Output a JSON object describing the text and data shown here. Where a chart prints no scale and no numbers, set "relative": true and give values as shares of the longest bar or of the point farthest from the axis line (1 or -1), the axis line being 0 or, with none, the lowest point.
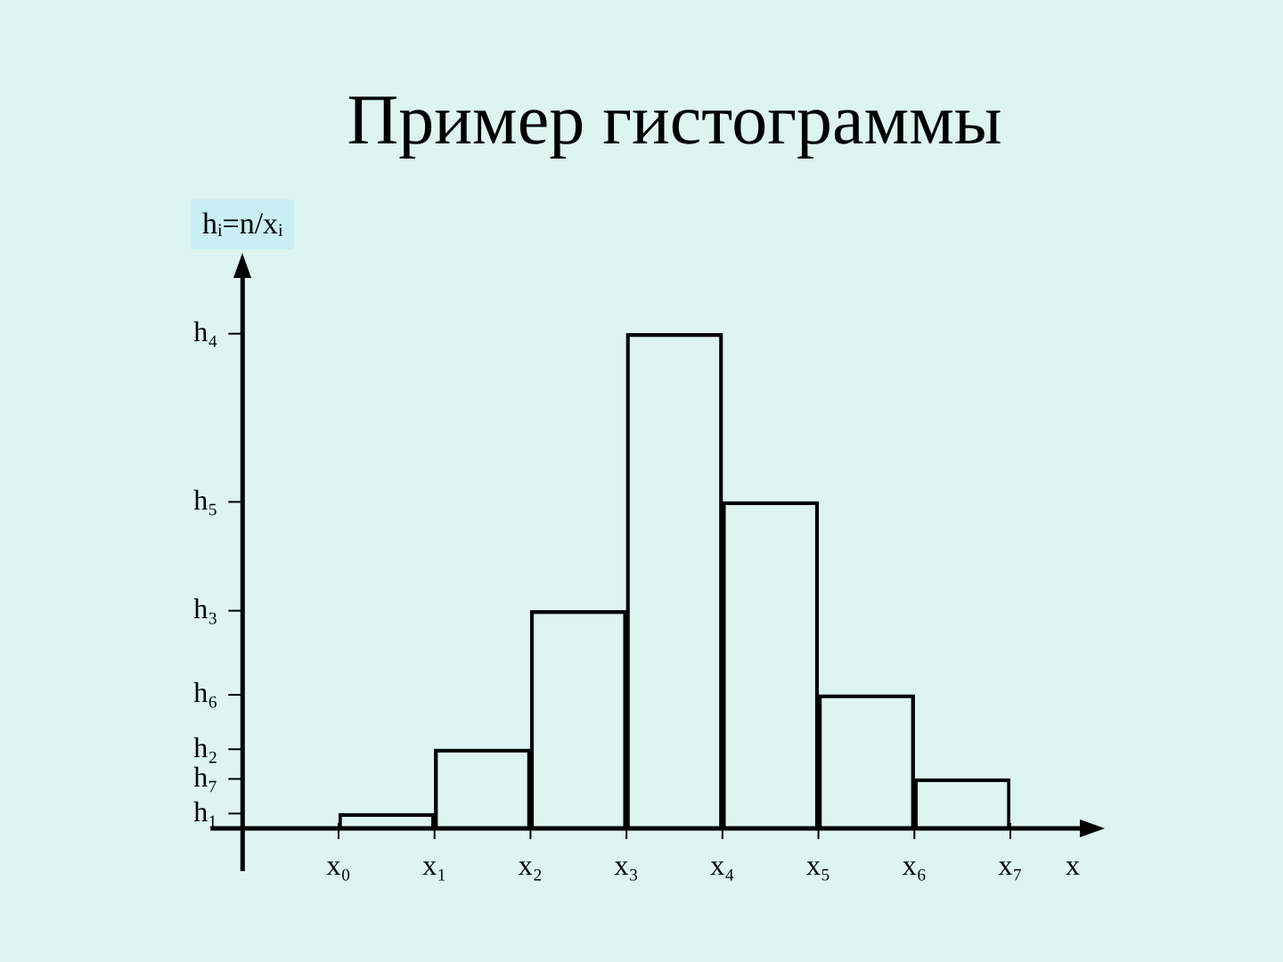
{
  "chart_data": {
    "type": "bar",
    "title": "Пример гистограммы",
    "xlabel": "x",
    "ylabel": "hᵢ=n/xᵢ",
    "categories": [
      null,
      null,
      null,
      null,
      null,
      null,
      null
    ],
    "values": [
      0.03,
      0.16,
      0.44,
      1,
      0.66,
      0.27,
      0.1
    ],
    "color": "#000000",
    "relative": true,
    "annotations": [
      "x₀",
      "x₁",
      "x₂",
      "x₃",
      "x₄",
      "x₅",
      "x₆",
      "x₇",
      "h₁",
      "h₂",
      "h₃",
      "h₄",
      "h₅",
      "h₆",
      "h₇"
    ]
  }
}
